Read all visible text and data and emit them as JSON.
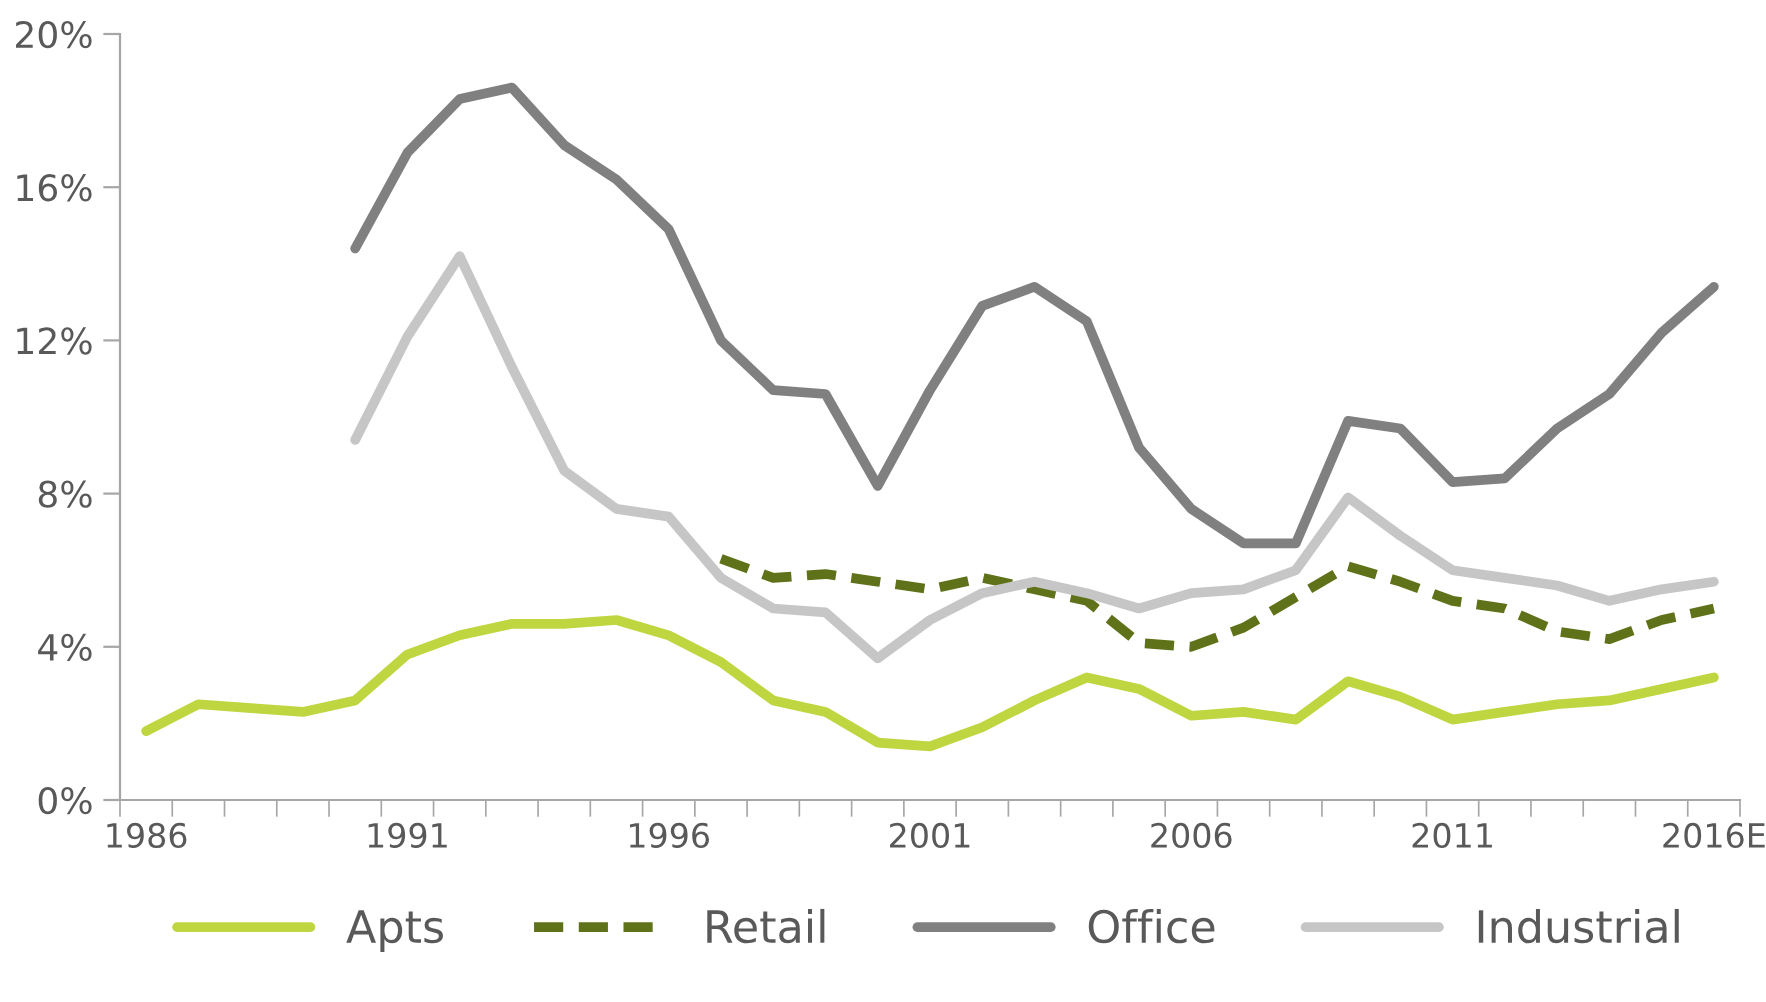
{
  "chart_data": {
    "type": "line",
    "categories": [
      "1986",
      null,
      null,
      null,
      null,
      "1991",
      null,
      null,
      null,
      null,
      "1996",
      null,
      null,
      null,
      null,
      "2001",
      null,
      null,
      null,
      null,
      "2006",
      null,
      null,
      null,
      null,
      "2011",
      null,
      null,
      null,
      null,
      "2016E"
    ],
    "series": [
      {
        "name": "Apts",
        "color": "#bfd641",
        "line_style": "solid",
        "values": [
          1.8,
          2.5,
          2.4,
          2.3,
          2.6,
          3.8,
          4.3,
          4.6,
          4.6,
          4.7,
          4.3,
          3.6,
          2.6,
          2.3,
          1.5,
          1.4,
          1.9,
          2.6,
          3.2,
          2.9,
          2.2,
          2.3,
          2.1,
          3.1,
          2.7,
          2.1,
          2.3,
          2.5,
          2.6,
          2.9,
          3.2
        ]
      },
      {
        "name": "Retail",
        "color": "#5f7219",
        "line_style": "dashed",
        "values": [
          null,
          null,
          null,
          null,
          null,
          null,
          null,
          null,
          null,
          null,
          null,
          6.3,
          5.8,
          5.9,
          5.7,
          5.5,
          5.8,
          5.5,
          5.2,
          4.1,
          4.0,
          4.5,
          5.3,
          6.1,
          5.7,
          5.2,
          5.0,
          4.4,
          4.2,
          4.7,
          5.0
        ]
      },
      {
        "name": "Office",
        "color": "#808080",
        "line_style": "solid",
        "values": [
          null,
          null,
          null,
          null,
          14.4,
          16.9,
          18.3,
          18.6,
          17.1,
          16.2,
          14.9,
          12.0,
          10.7,
          10.6,
          8.2,
          10.7,
          12.9,
          13.4,
          12.5,
          9.2,
          7.6,
          6.7,
          6.7,
          9.9,
          9.7,
          8.3,
          8.4,
          9.7,
          10.6,
          12.2,
          13.4
        ]
      },
      {
        "name": "Industrial",
        "color": "#c6c6c6",
        "line_style": "solid",
        "values": [
          null,
          null,
          null,
          null,
          9.4,
          12.1,
          14.2,
          11.3,
          8.6,
          7.6,
          7.4,
          5.8,
          5.0,
          4.9,
          3.7,
          4.7,
          5.4,
          5.7,
          5.4,
          5.0,
          5.4,
          5.5,
          6.0,
          7.9,
          6.9,
          6.0,
          5.8,
          5.6,
          5.2,
          5.5,
          5.7
        ]
      }
    ],
    "ylim": [
      0,
      20
    ],
    "yticks": [
      {
        "value": 0,
        "label": "0%"
      },
      {
        "value": 4,
        "label": "4%"
      },
      {
        "value": 8,
        "label": "8%"
      },
      {
        "value": 12,
        "label": "12%"
      },
      {
        "value": 16,
        "label": "16%"
      },
      {
        "value": 20,
        "label": "20%"
      }
    ],
    "grid": false,
    "legend": "bottom",
    "marker": "none"
  }
}
